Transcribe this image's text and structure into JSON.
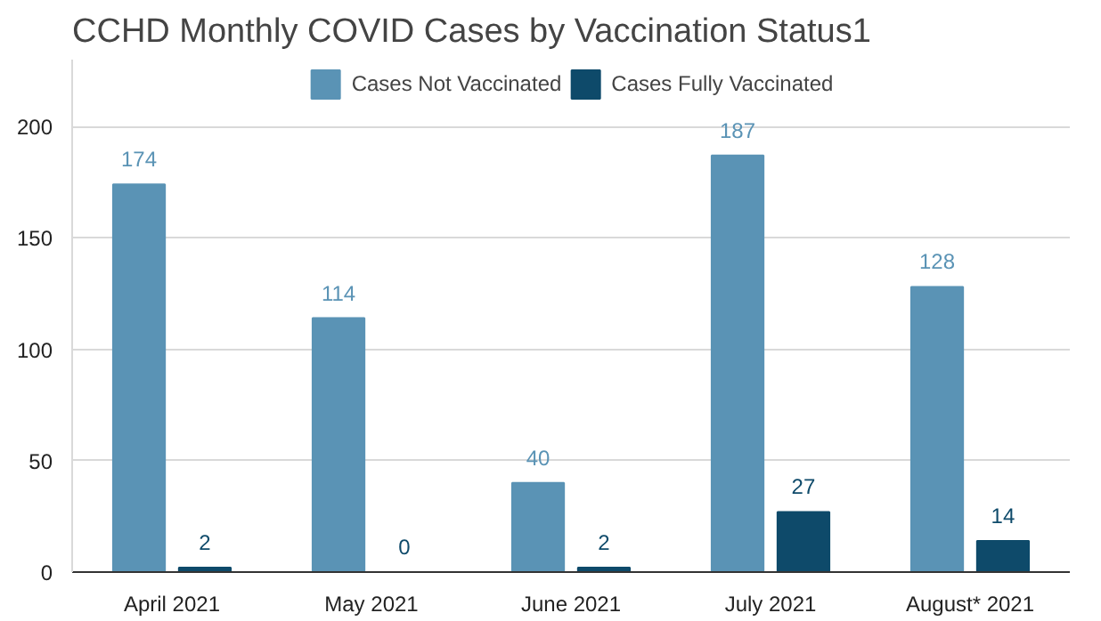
{
  "chart_data": {
    "type": "bar",
    "title": "CCHD Monthly COVID Cases by Vaccination Status1",
    "categories": [
      "April 2021",
      "May 2021",
      "June 2021",
      "July 2021",
      "August* 2021"
    ],
    "series": [
      {
        "name": "Cases Not Vaccinated",
        "color": "#5a93b5",
        "values": [
          174,
          114,
          40,
          187,
          128
        ]
      },
      {
        "name": "Cases Fully Vaccinated",
        "color": "#0e4a6a",
        "values": [
          2,
          0,
          2,
          27,
          14
        ]
      }
    ],
    "ylim": [
      0,
      230
    ],
    "yticks": [
      0,
      50,
      100,
      150,
      200
    ],
    "grid": "y",
    "legend": "top",
    "data_labels": true
  }
}
